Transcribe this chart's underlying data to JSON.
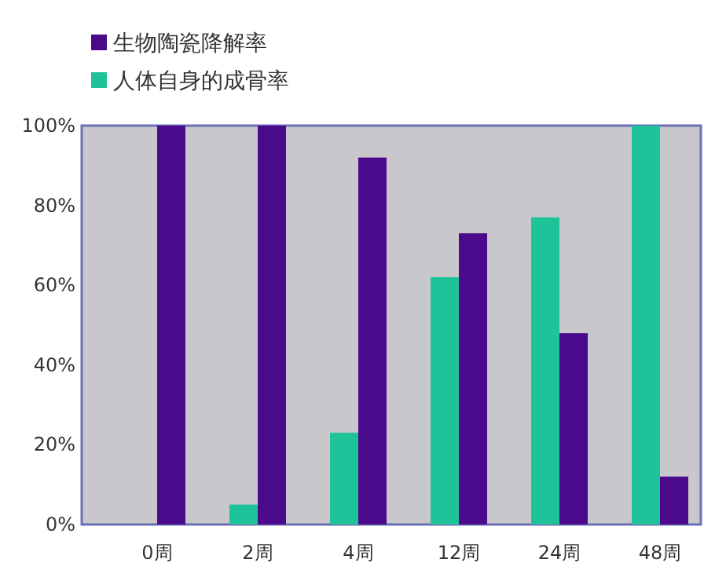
{
  "chart_data": {
    "type": "bar",
    "categories": [
      "0周",
      "2周",
      "4周",
      "12周",
      "24周",
      "48周"
    ],
    "series": [
      {
        "name": "人体自身的成骨率",
        "color": "#1fc39a",
        "values": [
          0,
          5,
          23,
          62,
          77,
          100
        ]
      },
      {
        "name": "生物陶瓷降解率",
        "color": "#4b0a8c",
        "values": [
          100,
          100,
          92,
          73,
          48,
          12
        ]
      }
    ],
    "ylim": [
      0,
      100
    ],
    "yticks": [
      {
        "value": 0,
        "label": "0%"
      },
      {
        "value": 20,
        "label": "20%"
      },
      {
        "value": 40,
        "label": "40%"
      },
      {
        "value": 60,
        "label": "60%"
      },
      {
        "value": 80,
        "label": "80%"
      },
      {
        "value": 100,
        "label": "100%"
      }
    ],
    "grid": false,
    "legend": "top left"
  }
}
